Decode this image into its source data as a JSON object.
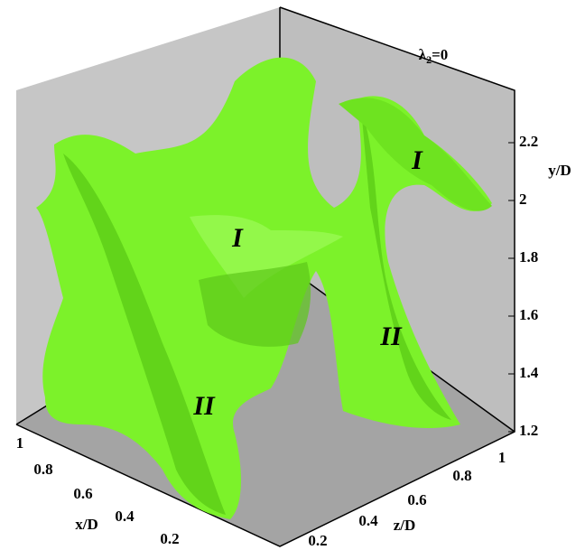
{
  "annotation": {
    "symbol": "λ",
    "subscript": "2",
    "rest": "=0"
  },
  "axes": {
    "y": {
      "title": "y/D",
      "ticks": [
        "1.2",
        "1.4",
        "1.6",
        "1.8",
        "2",
        "2.2"
      ]
    },
    "x": {
      "title": "x/D",
      "ticks": [
        "1",
        "0.8",
        "0.6",
        "0.4",
        "0.2"
      ]
    },
    "z": {
      "title": "z/D",
      "ticks": [
        "0.2",
        "0.4",
        "0.6",
        "0.8",
        "1"
      ]
    }
  },
  "labels": [
    "I",
    "I",
    "II",
    "II"
  ]
}
